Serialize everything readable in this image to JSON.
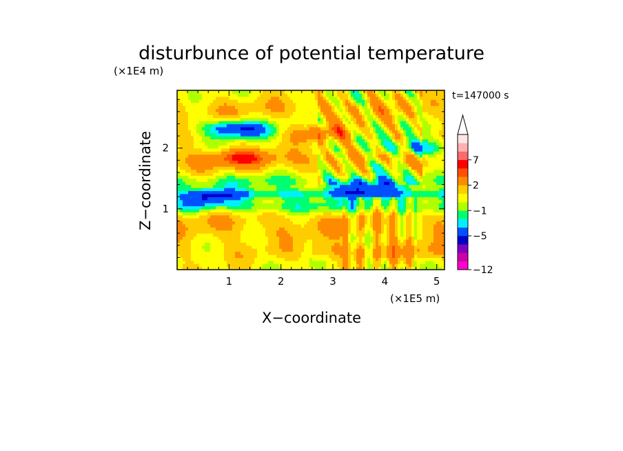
{
  "chart_data": {
    "type": "heatmap",
    "title": "disturbunce of potential temperature",
    "xlabel": "X−coordinate",
    "ylabel": "Z−coordinate",
    "x_unit": "(×1E5 m)",
    "y_unit": "(×1E4 m)",
    "time_label": "t=147000 s",
    "xlim": [
      0,
      5.15
    ],
    "ylim": [
      0,
      2.95
    ],
    "x_ticks": [
      1,
      2,
      3,
      4,
      5
    ],
    "y_ticks": [
      1,
      2
    ],
    "x_tick_labels": [
      "1",
      "2",
      "3",
      "4",
      "5"
    ],
    "y_tick_labels": [
      "1",
      "2"
    ],
    "colorbar": {
      "levels": [
        -12,
        -10,
        -8,
        -6,
        -5,
        -3,
        -2,
        -1,
        0,
        1,
        2,
        4,
        5,
        7,
        8,
        10
      ],
      "colors": [
        "#ff00cc",
        "#cc00aa",
        "#8000c0",
        "#0000c8",
        "#0050ff",
        "#00f0ff",
        "#00ff70",
        "#b0ff00",
        "#ffff00",
        "#ffcc00",
        "#ff8c00",
        "#ff5000",
        "#ff0000",
        "#ff6a6a",
        "#ffb0b0",
        "#ffe6e6"
      ],
      "labeled_levels": [
        {
          "value": -12,
          "label": "−12"
        },
        {
          "value": -5,
          "label": "−5"
        },
        {
          "value": -1,
          "label": "−1"
        },
        {
          "value": 2,
          "label": "2"
        },
        {
          "value": 7,
          "label": "7"
        }
      ],
      "extend": "max"
    },
    "features": [
      {
        "x": 1.3,
        "z": 2.3,
        "value": -5
      },
      {
        "x": 1.0,
        "z": 2.35,
        "value": -3
      },
      {
        "x": 1.2,
        "z": 1.85,
        "value": 4
      },
      {
        "x": 2.8,
        "z": 2.25,
        "value": 4
      },
      {
        "x": 3.6,
        "z": 1.35,
        "value": -5
      },
      {
        "x": 0.6,
        "z": 1.2,
        "value": -5
      },
      {
        "x": 3.8,
        "z": 1.7,
        "value": -3
      },
      {
        "x": 4.6,
        "z": 2.0,
        "value": -5
      }
    ]
  }
}
